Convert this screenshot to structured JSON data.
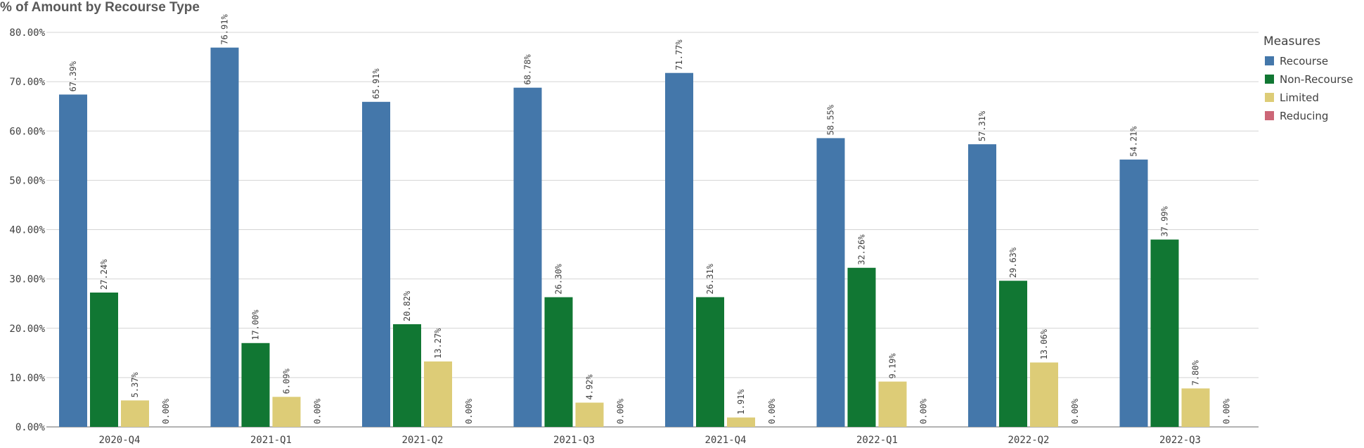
{
  "chart_data": {
    "type": "bar",
    "title": "% of Amount by Recourse Type",
    "categories": [
      "2020-Q4",
      "2021-Q1",
      "2021-Q2",
      "2021-Q3",
      "2021-Q4",
      "2022-Q1",
      "2022-Q2",
      "2022-Q3"
    ],
    "series": [
      {
        "name": "Recourse",
        "color": "#4477aa",
        "values": [
          67.39,
          76.91,
          65.91,
          68.78,
          71.77,
          58.55,
          57.31,
          54.21
        ],
        "labels": [
          "67.39%",
          "76.91%",
          "65.91%",
          "68.78%",
          "71.77%",
          "58.55%",
          "57.31%",
          "54.21%"
        ]
      },
      {
        "name": "Non-Recourse",
        "color": "#117733",
        "values": [
          27.24,
          17.0,
          20.82,
          26.3,
          26.31,
          32.26,
          29.63,
          37.99
        ],
        "labels": [
          "27.24%",
          "17.00%",
          "20.82%",
          "26.30%",
          "26.31%",
          "32.26%",
          "29.63%",
          "37.99%"
        ]
      },
      {
        "name": "Limited",
        "color": "#ddcc77",
        "values": [
          5.37,
          6.09,
          13.27,
          4.92,
          1.91,
          9.19,
          13.06,
          7.8
        ],
        "labels": [
          "5.37%",
          "6.09%",
          "13.27%",
          "4.92%",
          "1.91%",
          "9.19%",
          "13.06%",
          "7.80%"
        ]
      },
      {
        "name": "Reducing",
        "color": "#cc6677",
        "values": [
          0,
          0,
          0,
          0,
          0,
          0,
          0,
          0
        ],
        "labels": [
          "0.00%",
          "0.00%",
          "0.00%",
          "0.00%",
          "0.00%",
          "0.00%",
          "0.00%",
          "0.00%"
        ]
      }
    ],
    "yticks": [
      "0.00%",
      "10.00%",
      "20.00%",
      "30.00%",
      "40.00%",
      "50.00%",
      "60.00%",
      "70.00%",
      "80.00%"
    ],
    "ylim": [
      0,
      80
    ],
    "grid": true,
    "legend": {
      "title": "Measures",
      "position": "top-right"
    }
  }
}
